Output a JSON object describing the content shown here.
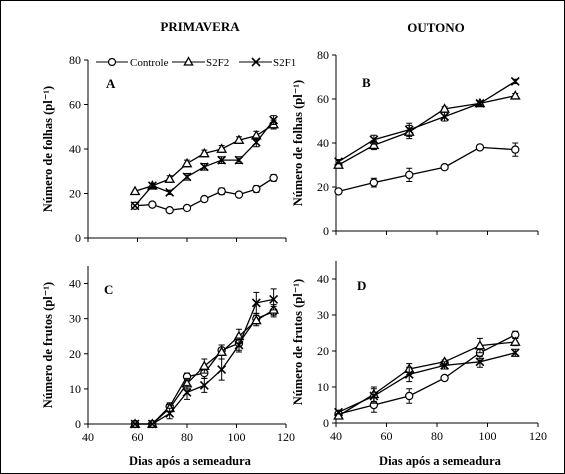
{
  "season_labels": [
    "PRIMAVERA",
    "OUTONO"
  ],
  "legend": [
    "Controle",
    "S2F2",
    "S2F1"
  ],
  "series_markers": [
    "circle",
    "triangle",
    "x"
  ],
  "x_axis_label": "Dias após a semeadura",
  "chart_data": [
    {
      "type": "line",
      "panel_label": "A",
      "ylabel": "Número de folhas (pl⁻¹)",
      "xlim": [
        40,
        120
      ],
      "ylim": [
        0,
        80
      ],
      "xticks": [],
      "yticks": [
        0,
        20,
        40,
        60,
        80
      ],
      "series": [
        {
          "name": "Controle",
          "x": [
            59,
            66,
            73,
            80,
            87,
            94,
            101,
            108,
            115
          ],
          "y": [
            14.5,
            15,
            12.5,
            13.5,
            17.5,
            21,
            19.5,
            22,
            27
          ],
          "err": [
            0,
            1,
            1,
            1,
            1,
            1.5,
            1,
            1.5,
            1.5
          ]
        },
        {
          "name": "S2F2",
          "x": [
            59,
            66,
            73,
            80,
            87,
            94,
            101,
            108,
            115
          ],
          "y": [
            21,
            23.5,
            26.5,
            33.5,
            38,
            40,
            44,
            46,
            51
          ],
          "err": [
            0,
            1,
            1.5,
            1.5,
            1.5,
            1.5,
            1.5,
            2,
            2
          ]
        },
        {
          "name": "S2F1",
          "x": [
            59,
            66,
            73,
            80,
            87,
            94,
            101,
            108,
            115
          ],
          "y": [
            14.5,
            23.5,
            20.5,
            27.5,
            32,
            35,
            35,
            43,
            53
          ],
          "err": [
            0,
            1,
            1,
            1.5,
            1.5,
            1.5,
            1.5,
            2,
            2
          ]
        }
      ]
    },
    {
      "type": "line",
      "panel_label": "B",
      "ylabel": "Número de folhas (pl⁻¹)",
      "xlim": [
        40,
        120
      ],
      "ylim": [
        0,
        80
      ],
      "xticks": [],
      "yticks": [
        0,
        20,
        40,
        60,
        80
      ],
      "series": [
        {
          "name": "Controle",
          "x": [
            41,
            55,
            69,
            83,
            97,
            111
          ],
          "y": [
            18,
            22,
            25.5,
            29,
            38,
            37
          ],
          "err": [
            1,
            2,
            3,
            1,
            1,
            3
          ]
        },
        {
          "name": "S2F2",
          "x": [
            41,
            55,
            69,
            83,
            97,
            111
          ],
          "y": [
            30,
            39,
            45,
            55.5,
            58,
            61.5
          ],
          "err": [
            1,
            2,
            3,
            1,
            1,
            1
          ]
        },
        {
          "name": "S2F1",
          "x": [
            41,
            55,
            69,
            83,
            97,
            111
          ],
          "y": [
            31.5,
            41.5,
            46,
            52,
            58,
            68
          ],
          "err": [
            1,
            2,
            3,
            2,
            1,
            1
          ]
        }
      ]
    },
    {
      "type": "line",
      "panel_label": "C",
      "ylabel": "Número de frutos (pl⁻¹)",
      "xlim": [
        40,
        120
      ],
      "ylim": [
        0,
        45
      ],
      "xticks": [
        40,
        60,
        80,
        100,
        120
      ],
      "yticks": [
        0,
        10,
        20,
        30,
        40
      ],
      "series": [
        {
          "name": "Controle",
          "x": [
            59,
            66,
            73,
            80,
            87,
            94,
            101,
            108,
            115
          ],
          "y": [
            0,
            0,
            5,
            13.5,
            14.5,
            21,
            23,
            30,
            32
          ],
          "err": [
            0,
            0,
            1,
            1,
            1.5,
            1.5,
            2,
            1.5,
            1.5
          ]
        },
        {
          "name": "S2F2",
          "x": [
            59,
            66,
            73,
            80,
            87,
            94,
            101,
            108,
            115
          ],
          "y": [
            0,
            0,
            4.5,
            11.5,
            16.5,
            20.5,
            25,
            29.5,
            32.5
          ],
          "err": [
            0,
            0,
            1,
            1.5,
            2,
            2,
            2,
            1.5,
            1.5
          ]
        },
        {
          "name": "S2F1",
          "x": [
            59,
            66,
            73,
            80,
            87,
            94,
            101,
            108,
            115
          ],
          "y": [
            0,
            0,
            3,
            9,
            11,
            15.5,
            22.5,
            34.5,
            35.5
          ],
          "err": [
            0,
            0,
            1.5,
            2,
            2,
            3,
            2,
            3,
            3
          ]
        }
      ]
    },
    {
      "type": "line",
      "panel_label": "D",
      "ylabel": "Número de frutos (pl⁻¹)",
      "xlim": [
        40,
        120
      ],
      "ylim": [
        0,
        45
      ],
      "xticks": [
        40,
        60,
        80,
        100,
        120
      ],
      "yticks": [
        0,
        10,
        20,
        30,
        40
      ],
      "series": [
        {
          "name": "Controle",
          "x": [
            41,
            55,
            69,
            83,
            97,
            111
          ],
          "y": [
            2.5,
            5,
            7.5,
            12.5,
            19.5,
            24.5
          ],
          "err": [
            1,
            2,
            2,
            0.5,
            1.5,
            1
          ]
        },
        {
          "name": "S2F2",
          "x": [
            41,
            55,
            69,
            83,
            97,
            111
          ],
          "y": [
            2,
            8,
            15,
            17,
            21.5,
            22.5
          ],
          "err": [
            0.5,
            2,
            1.5,
            0.5,
            2,
            1
          ]
        },
        {
          "name": "S2F1",
          "x": [
            41,
            55,
            69,
            83,
            97,
            111
          ],
          "y": [
            3,
            7.5,
            13.5,
            16,
            17,
            19.5
          ],
          "err": [
            0.5,
            2,
            2,
            1,
            1.5,
            1
          ]
        }
      ]
    }
  ]
}
